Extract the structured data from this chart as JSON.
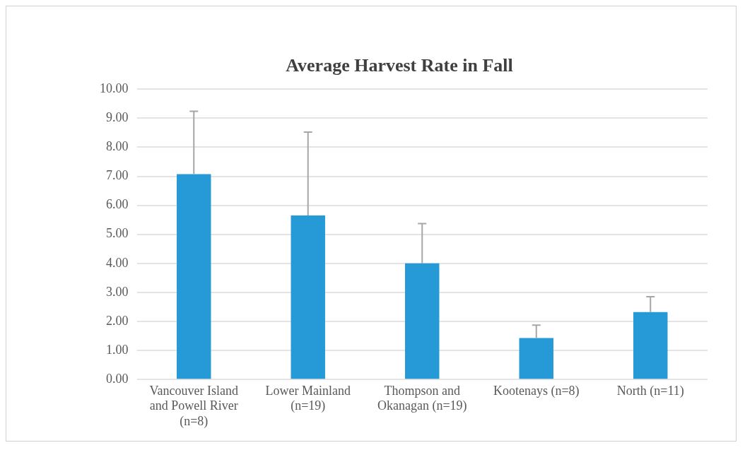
{
  "chart_data": {
    "type": "bar",
    "title": "Average Harvest Rate in Fall",
    "categories": [
      "Vancouver Island and Powell River (n=8)",
      "Lower Mainland (n=19)",
      "Thompson and Okanagan (n=19)",
      "Kootenays (n=8)",
      "North (n=11)"
    ],
    "values": [
      7.07,
      5.65,
      4.0,
      1.43,
      2.32
    ],
    "errors": [
      [
        7.07,
        9.24
      ],
      [
        5.65,
        8.52
      ],
      [
        4.0,
        5.37
      ],
      [
        1.43,
        1.87
      ],
      [
        2.32,
        2.85
      ]
    ],
    "color": "#259ad6",
    "ylim": [
      0,
      10
    ],
    "yticks": [
      {
        "value": 0,
        "label": "0.00"
      },
      {
        "value": 1,
        "label": "1.00"
      },
      {
        "value": 2,
        "label": "2.00"
      },
      {
        "value": 3,
        "label": "3.00"
      },
      {
        "value": 4,
        "label": "4.00"
      },
      {
        "value": 5,
        "label": "5.00"
      },
      {
        "value": 6,
        "label": "6.00"
      },
      {
        "value": 7,
        "label": "7.00"
      },
      {
        "value": 8,
        "label": "8.00"
      },
      {
        "value": 9,
        "label": "9.00"
      },
      {
        "value": 10,
        "label": "10.00"
      }
    ],
    "grid": "y"
  }
}
